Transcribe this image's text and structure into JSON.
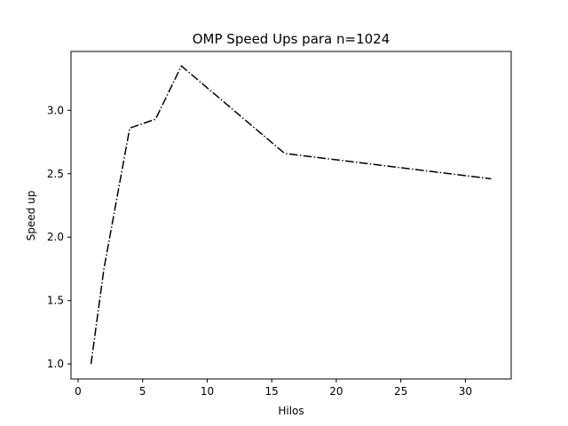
{
  "chart_data": {
    "type": "line",
    "title": "OMP Speed Ups para n=1024",
    "xlabel": "Hilos",
    "ylabel": "Speed up",
    "xlim": [
      -0.55,
      33.55
    ],
    "ylim": [
      0.882,
      3.464
    ],
    "xticks": [
      0,
      5,
      10,
      15,
      20,
      25,
      30
    ],
    "xtick_labels": [
      "0",
      "5",
      "10",
      "15",
      "20",
      "25",
      "30"
    ],
    "yticks": [
      1.0,
      1.5,
      2.0,
      2.5,
      3.0
    ],
    "ytick_labels": [
      "1.0",
      "1.5",
      "2.0",
      "2.5",
      "3.0"
    ],
    "grid": false,
    "series": [
      {
        "x": [
          1,
          2,
          4,
          6,
          8,
          16,
          32
        ],
        "y": [
          1.0,
          1.75,
          2.86,
          2.93,
          3.35,
          2.66,
          2.46
        ],
        "color": "#000000",
        "linestyle": "dashdot"
      }
    ]
  }
}
